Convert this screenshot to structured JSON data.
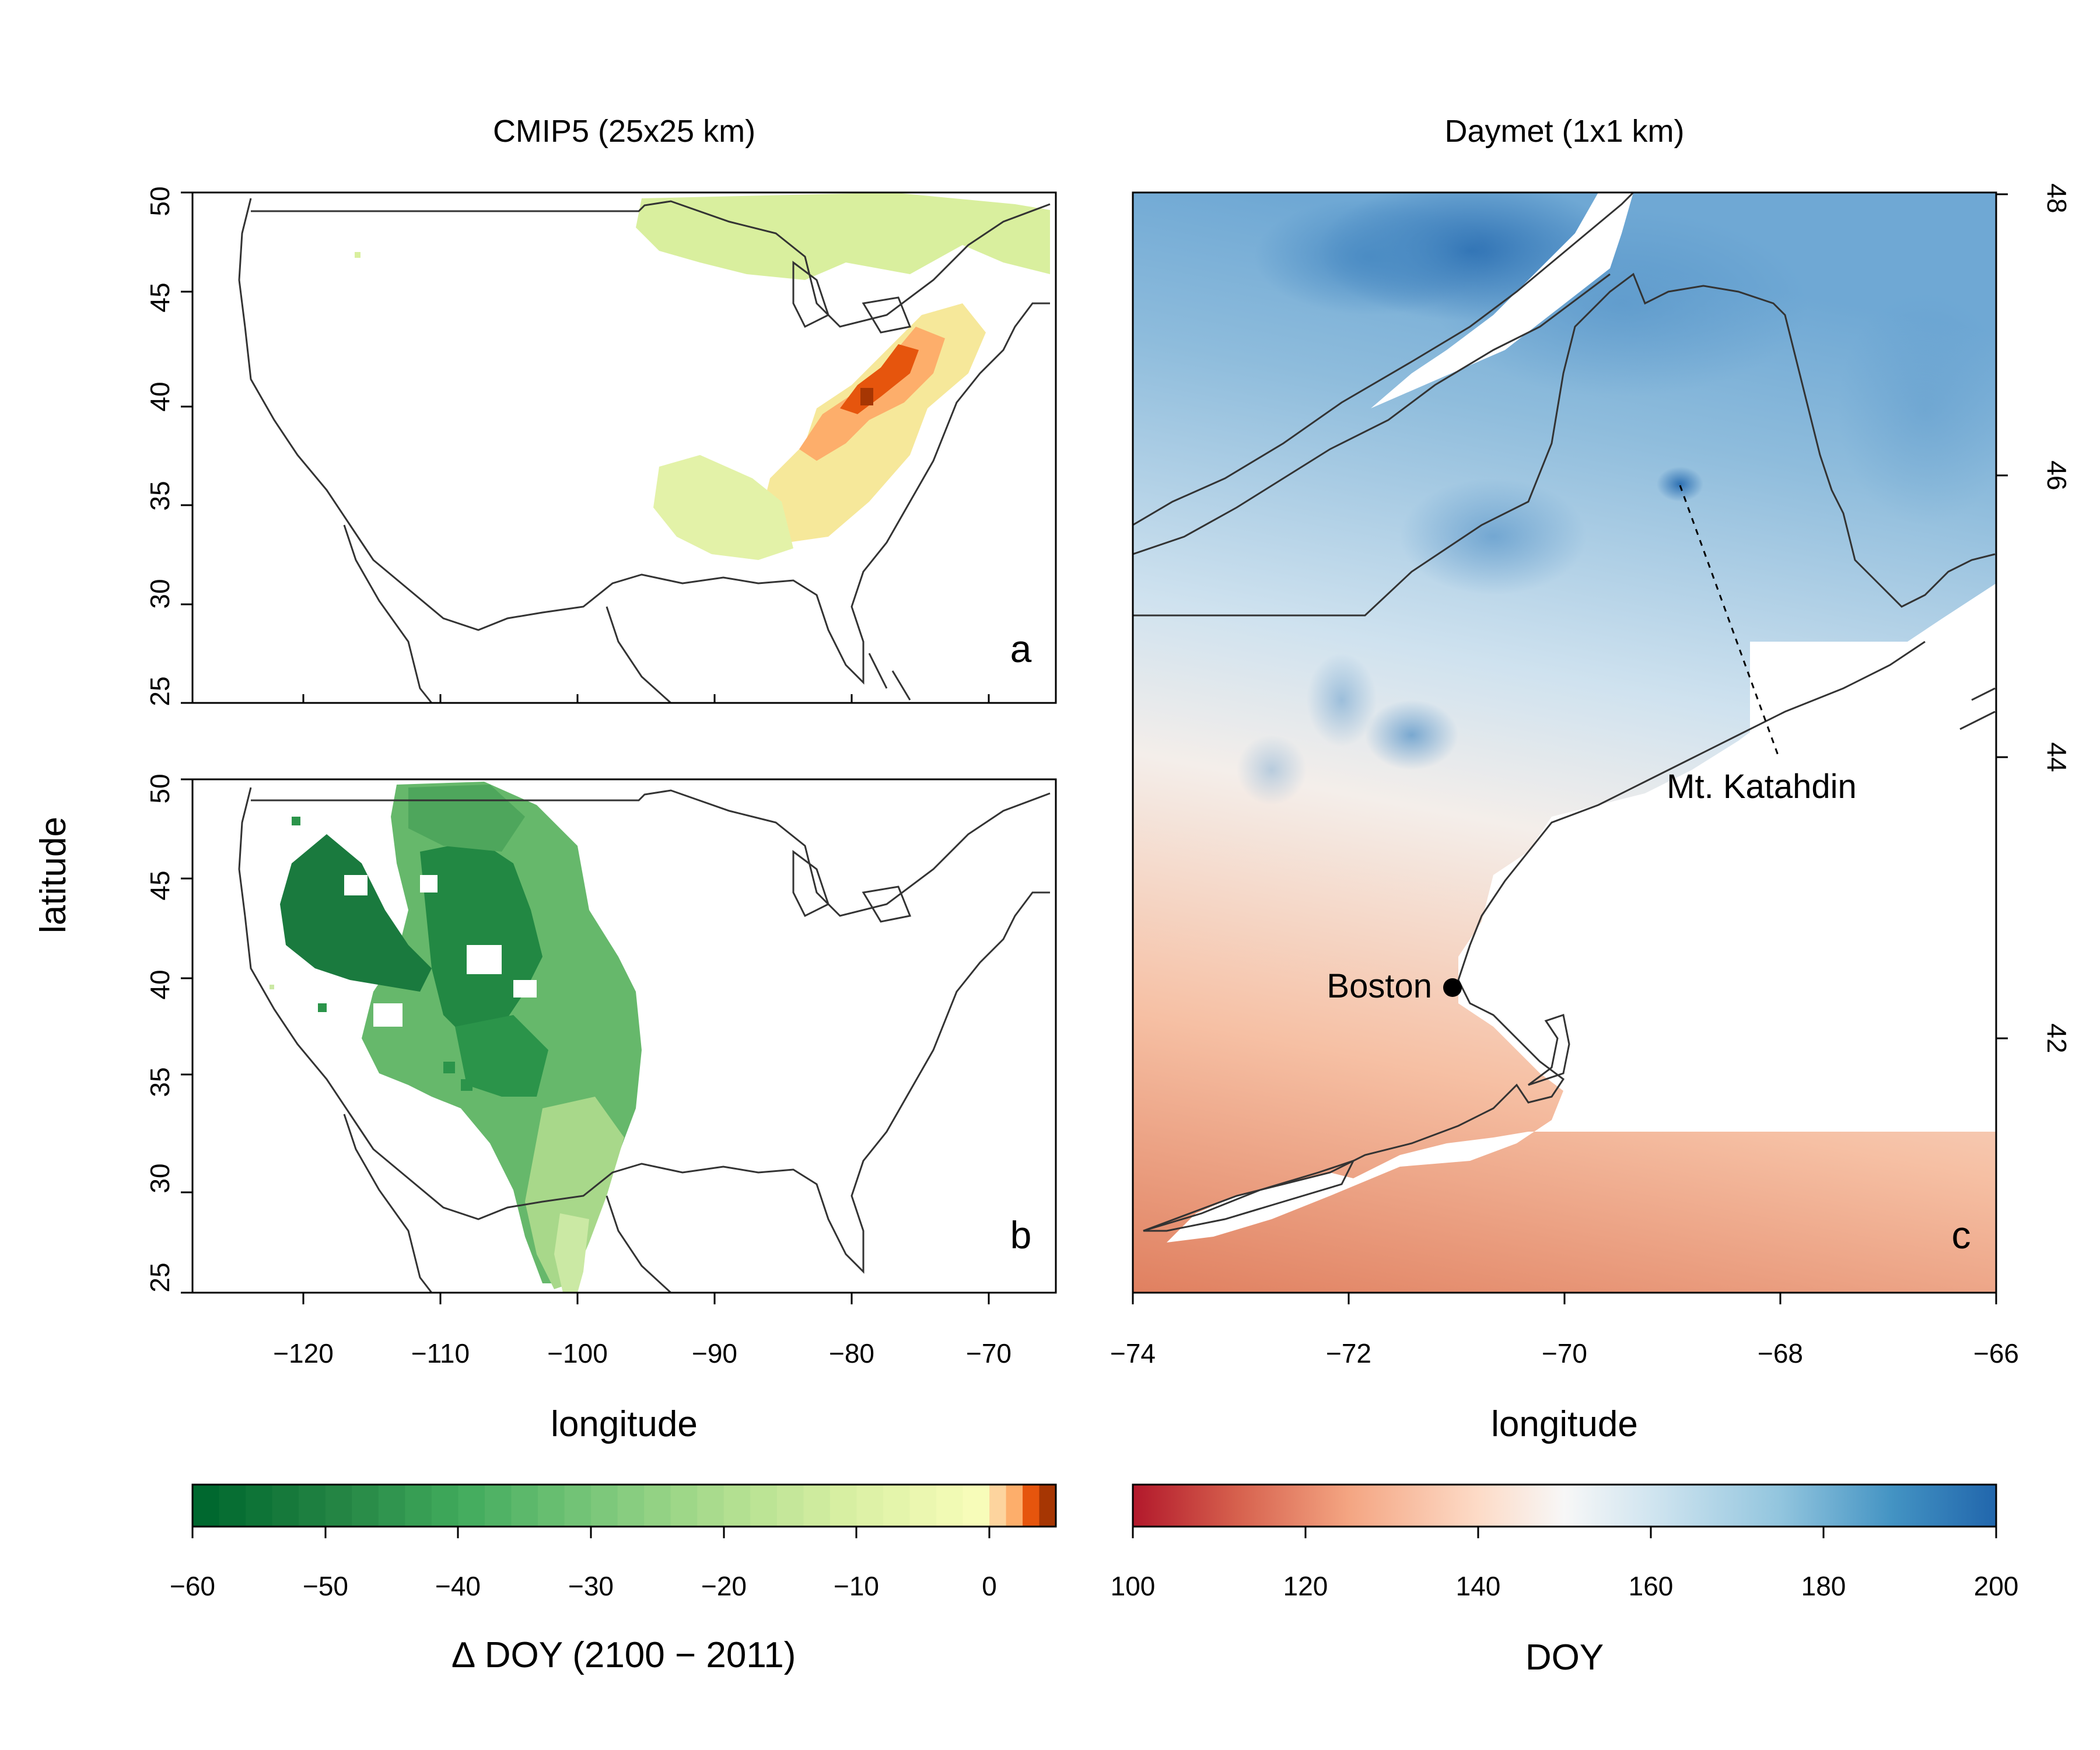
{
  "panels": {
    "left_title": "CMIP5 (25x25 km)",
    "right_title": "Daymet (1x1 km)",
    "letters": [
      "a",
      "b",
      "c"
    ]
  },
  "axes": {
    "left_lat_ticks": [
      "25",
      "30",
      "35",
      "40",
      "45",
      "50"
    ],
    "left_lon_ticks": [
      "−120",
      "−110",
      "−100",
      "−90",
      "−80",
      "−70"
    ],
    "right_lon_ticks": [
      "−74",
      "−72",
      "−70",
      "−68",
      "−66"
    ],
    "right_lat_ticks": [
      "42",
      "44",
      "46",
      "48"
    ],
    "ylabel": "latitude",
    "xlabel_left": "longitude",
    "xlabel_right": "longitude"
  },
  "annotations": {
    "boston": "Boston",
    "katahdin": "Mt. Katahdin"
  },
  "colorbars": {
    "left": {
      "ticks": [
        "−60",
        "−50",
        "−40",
        "−30",
        "−20",
        "−10",
        "0"
      ],
      "label": "∆ DOY (2100 − 2011)",
      "range": [
        -60,
        5
      ],
      "colors_negative": [
        "#00682f",
        "#238443",
        "#41ab5d",
        "#78c679",
        "#addd8e",
        "#d9f0a3",
        "#f7fcb9"
      ],
      "colors_positive": [
        "#fdd49e",
        "#fdae6b",
        "#e6550d",
        "#a63603"
      ]
    },
    "right": {
      "ticks": [
        "100",
        "120",
        "140",
        "160",
        "180",
        "200"
      ],
      "label": "DOY",
      "range": [
        100,
        200
      ],
      "colors": [
        "#b2182b",
        "#d6604d",
        "#f4a582",
        "#fddbc7",
        "#f7f7f7",
        "#d1e5f0",
        "#92c5de",
        "#4393c3",
        "#2166ac"
      ]
    }
  }
}
